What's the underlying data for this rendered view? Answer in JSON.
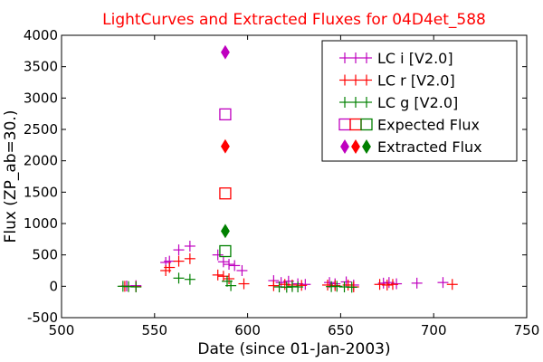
{
  "chart_data": {
    "type": "scatter",
    "title": "LightCurves and Extracted Fluxes for 04D4et_588",
    "title_color": "#ff0000",
    "xlabel": "Date (since 01-Jan-2003)",
    "ylabel": "Flux (ZP_ab=30.)",
    "xlim": [
      500,
      750
    ],
    "ylim": [
      -500,
      4000
    ],
    "xticks": [
      "500",
      "550",
      "600",
      "650",
      "700",
      "750"
    ],
    "yticks": [
      "-500",
      "0",
      "500",
      "1000",
      "1500",
      "2000",
      "2500",
      "3000",
      "3500",
      "4000"
    ],
    "grid": false,
    "legend_position": "top-right",
    "series": [
      {
        "name": "LC i [V2.0]",
        "marker": "plus",
        "color": "#bf00bf",
        "points": [
          [
            535,
            5
          ],
          [
            540,
            10
          ],
          [
            556,
            380
          ],
          [
            558,
            400
          ],
          [
            563,
            580
          ],
          [
            569,
            640
          ],
          [
            584,
            500
          ],
          [
            587,
            390
          ],
          [
            590,
            350
          ],
          [
            593,
            330
          ],
          [
            597,
            250
          ],
          [
            614,
            90
          ],
          [
            618,
            60
          ],
          [
            622,
            80
          ],
          [
            627,
            40
          ],
          [
            631,
            30
          ],
          [
            644,
            60
          ],
          [
            647,
            40
          ],
          [
            653,
            70
          ],
          [
            657,
            20
          ],
          [
            673,
            50
          ],
          [
            676,
            60
          ],
          [
            680,
            40
          ],
          [
            691,
            50
          ],
          [
            705,
            60
          ]
        ]
      },
      {
        "name": "LC r [V2.0]",
        "marker": "plus",
        "color": "#ff0000",
        "points": [
          [
            534,
            0
          ],
          [
            540,
            -5
          ],
          [
            556,
            250
          ],
          [
            558,
            300
          ],
          [
            563,
            400
          ],
          [
            569,
            440
          ],
          [
            584,
            180
          ],
          [
            587,
            160
          ],
          [
            590,
            120
          ],
          [
            598,
            40
          ],
          [
            614,
            10
          ],
          [
            620,
            30
          ],
          [
            624,
            20
          ],
          [
            629,
            15
          ],
          [
            643,
            20
          ],
          [
            647,
            10
          ],
          [
            654,
            20
          ],
          [
            657,
            -10
          ],
          [
            671,
            30
          ],
          [
            675,
            20
          ],
          [
            678,
            30
          ],
          [
            710,
            30
          ]
        ]
      },
      {
        "name": "LC g [V2.0]",
        "marker": "plus",
        "color": "#008000",
        "points": [
          [
            533,
            0
          ],
          [
            536,
            -5
          ],
          [
            540,
            -10
          ],
          [
            563,
            130
          ],
          [
            569,
            110
          ],
          [
            589,
            80
          ],
          [
            591,
            10
          ],
          [
            617,
            -10
          ],
          [
            621,
            -15
          ],
          [
            624,
            -5
          ],
          [
            627,
            -10
          ],
          [
            645,
            -5
          ],
          [
            648,
            0
          ],
          [
            652,
            -10
          ],
          [
            656,
            -15
          ]
        ]
      },
      {
        "name": "Expected Flux",
        "marker": "open-square",
        "color_list": [
          "#bf00bf",
          "#ff0000",
          "#008000"
        ],
        "points": [
          [
            588,
            2740
          ],
          [
            588,
            1480
          ],
          [
            588,
            560
          ]
        ]
      },
      {
        "name": "Extracted Flux",
        "marker": "diamond",
        "color_list": [
          "#bf00bf",
          "#ff0000",
          "#008000"
        ],
        "points": [
          [
            588,
            3730
          ],
          [
            588,
            2230
          ],
          [
            588,
            880
          ]
        ]
      }
    ]
  }
}
